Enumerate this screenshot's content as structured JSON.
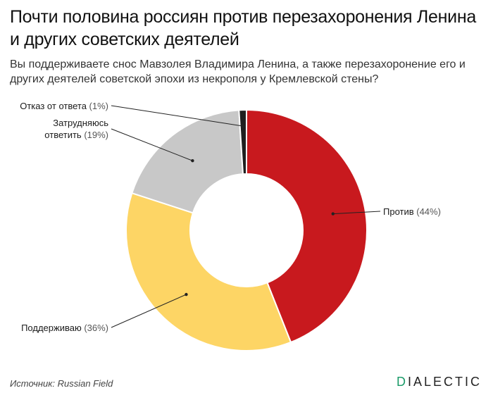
{
  "header": {
    "title": "Почти половина россиян против перезахоронения Ленина и других советских деятелей",
    "subtitle": "Вы поддерживаете снос Мавзолея Владимира Ленина, а также перезахоронение его и других деятелей советской эпохи из некрополя у Кремлевской стены?"
  },
  "footer": {
    "source_label": "Источник: Russian Field",
    "brand_first": "D",
    "brand_rest": "IALECTIC"
  },
  "colors": {
    "against": "#c8191e",
    "support": "#fdd565",
    "unsure": "#c8c8c8",
    "refusal": "#1f1f1f",
    "brand_accent": "#1a9a68"
  },
  "chart_data": {
    "type": "pie",
    "donut": true,
    "unit": "%",
    "slices": [
      {
        "name": "Против",
        "value": 44,
        "display": "(44%)",
        "color": "#c8191e"
      },
      {
        "name": "Поддерживаю",
        "value": 36,
        "display": "(36%)",
        "color": "#fdd565"
      },
      {
        "name": "Затрудняюсь ответить",
        "value": 19,
        "display": "(19%)",
        "color": "#c8c8c8"
      },
      {
        "name": "Отказ от ответа",
        "value": 1,
        "display": "(1%)",
        "color": "#1f1f1f"
      }
    ]
  }
}
